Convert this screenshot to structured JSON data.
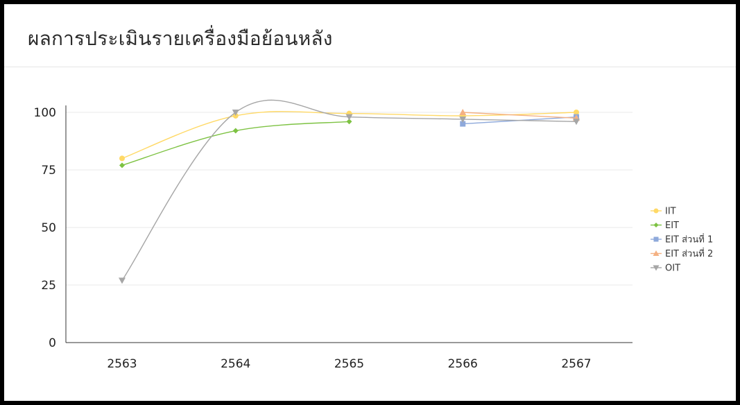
{
  "title": "ผลการประเมินรายเครื่องมือย้อนหลัง",
  "chart_data": {
    "type": "line",
    "title": "ผลการประเมินรายเครื่องมือย้อนหลัง",
    "xlabel": "",
    "ylabel": "",
    "categories": [
      "2563",
      "2564",
      "2565",
      "2566",
      "2567"
    ],
    "ylim": [
      0,
      100
    ],
    "yticks": [
      0,
      25,
      50,
      75,
      100
    ],
    "grid": true,
    "legend_position": "right",
    "series": [
      {
        "name": "IIT",
        "color": "#FFD966",
        "marker": "circle",
        "values": [
          80,
          98.5,
          99.5,
          98.5,
          100
        ]
      },
      {
        "name": "EIT",
        "color": "#7DC242",
        "marker": "diamond",
        "values": [
          77,
          92,
          96,
          null,
          null
        ]
      },
      {
        "name": "EIT ส่วนที่ 1",
        "color": "#8EA9DB",
        "marker": "square",
        "values": [
          null,
          null,
          null,
          95,
          98
        ]
      },
      {
        "name": "EIT ส่วนที่ 2",
        "color": "#F4B183",
        "marker": "triangle-up",
        "values": [
          null,
          null,
          null,
          100,
          97.5
        ]
      },
      {
        "name": "OIT",
        "color": "#A6A6A6",
        "marker": "triangle-down",
        "values": [
          27,
          100,
          98,
          97,
          96
        ]
      }
    ]
  }
}
